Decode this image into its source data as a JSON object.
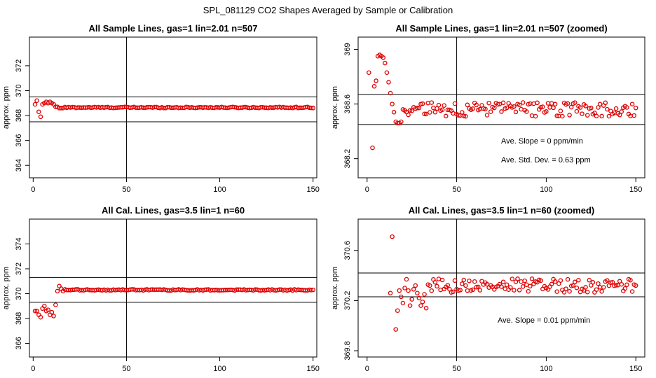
{
  "figure": {
    "title": "SPL_081129  CO2 Shapes Averaged by Sample or Calibration",
    "marker_color": "#e00000"
  },
  "chart_data": [
    {
      "type": "scatter",
      "title": "All Sample Lines, gas=1 lin=2.01 n=507",
      "ylabel": "approx. ppm",
      "xlim": [
        -2,
        152
      ],
      "ylim": [
        363,
        374.3
      ],
      "xticks": [
        0,
        50,
        100,
        150
      ],
      "yticks": [
        364,
        366,
        368,
        370,
        372
      ],
      "vline": 50,
      "hlines": [
        367.5,
        369.5
      ],
      "annotations": [],
      "shape": [
        [
          1,
          368.9
        ],
        [
          2,
          369.2
        ],
        [
          3,
          368.3
        ],
        [
          4,
          367.9
        ],
        [
          5,
          368.9
        ],
        [
          6,
          369.0
        ],
        [
          7,
          369.1
        ],
        [
          8,
          369.0
        ],
        [
          9,
          369.1
        ],
        [
          10,
          369.0
        ],
        [
          11,
          368.9
        ],
        [
          12,
          368.7
        ],
        [
          13,
          368.7
        ],
        [
          14,
          368.6
        ],
        [
          15,
          368.6
        ],
        [
          16,
          368.6
        ]
      ],
      "plateau": {
        "x_start": 17,
        "x_end": 150,
        "level": 368.65
      }
    },
    {
      "type": "scatter",
      "title": "All Sample Lines, gas=1 lin=2.01 n=507 (zoomed)",
      "ylabel": "approx. ppm",
      "xlim": [
        -5,
        155
      ],
      "ylim": [
        368.06,
        369.09
      ],
      "xticks": [
        0,
        50,
        100,
        150
      ],
      "yticks": [
        368.2,
        368.6,
        369.0
      ],
      "vline": 50,
      "hlines": [
        368.45,
        368.67
      ],
      "annotations": [
        "Ave. Slope =  0  ppm/min",
        "Ave. Std. Dev. =  0.63  ppm"
      ],
      "shape": [
        [
          1,
          368.83
        ],
        [
          3,
          368.28
        ],
        [
          4,
          368.73
        ],
        [
          5,
          368.77
        ],
        [
          6,
          368.95
        ],
        [
          7,
          368.96
        ],
        [
          8,
          368.95
        ],
        [
          9,
          368.94
        ],
        [
          10,
          368.9
        ],
        [
          11,
          368.83
        ],
        [
          12,
          368.76
        ],
        [
          13,
          368.68
        ],
        [
          14,
          368.6
        ],
        [
          15,
          368.54
        ],
        [
          16,
          368.47
        ],
        [
          17,
          368.46
        ],
        [
          18,
          368.46
        ],
        [
          19,
          368.47
        ],
        [
          20,
          368.56
        ]
      ],
      "plateau": {
        "x_start": 21,
        "x_end": 150,
        "level": 368.56
      }
    },
    {
      "type": "scatter",
      "title": "All Cal. Lines, gas=3.5 lin=1 n=60",
      "ylabel": "approx. ppm",
      "xlim": [
        -2,
        152
      ],
      "ylim": [
        364.9,
        376
      ],
      "xticks": [
        0,
        50,
        100,
        150
      ],
      "yticks": [
        366,
        368,
        370,
        372,
        374
      ],
      "vline": 50,
      "hlines": [
        369.3,
        371.3
      ],
      "annotations": [],
      "shape": [
        [
          1,
          368.6
        ],
        [
          2,
          368.6
        ],
        [
          3,
          368.3
        ],
        [
          4,
          368.1
        ],
        [
          5,
          368.8
        ],
        [
          6,
          369.0
        ],
        [
          7,
          368.6
        ],
        [
          8,
          368.7
        ],
        [
          9,
          368.3
        ],
        [
          10,
          368.5
        ],
        [
          11,
          368.2
        ],
        [
          12,
          369.1
        ],
        [
          13,
          370.2
        ],
        [
          14,
          370.6
        ],
        [
          15,
          370.4
        ],
        [
          16,
          370.2
        ]
      ],
      "plateau": {
        "x_start": 17,
        "x_end": 150,
        "level": 370.3
      }
    },
    {
      "type": "scatter",
      "title": "All Cal. Lines, gas=3.5 lin=1 n=60 (zoomed)",
      "ylabel": "approx. ppm",
      "xlim": [
        -5,
        155
      ],
      "ylim": [
        369.75,
        370.85
      ],
      "xticks": [
        0,
        50,
        100,
        150
      ],
      "yticks": [
        369.8,
        370.2,
        370.6
      ],
      "vline": 50,
      "hlines": [
        370.23,
        370.42
      ],
      "annotations": [
        "Ave. Slope =  0.01  ppm/min"
      ],
      "shape": [
        [
          13,
          370.26
        ],
        [
          14,
          370.71
        ],
        [
          16,
          369.97
        ],
        [
          17,
          370.12
        ],
        [
          18,
          370.28
        ],
        [
          19,
          370.23
        ],
        [
          20,
          370.18
        ],
        [
          21,
          370.3
        ],
        [
          22,
          370.37
        ],
        [
          23,
          370.28
        ],
        [
          24,
          370.16
        ],
        [
          25,
          370.21
        ],
        [
          26,
          370.29
        ],
        [
          27,
          370.32
        ],
        [
          28,
          370.26
        ],
        [
          29,
          370.22
        ],
        [
          30,
          370.16
        ],
        [
          31,
          370.19
        ],
        [
          32,
          370.25
        ],
        [
          33,
          370.14
        ]
      ],
      "plateau": {
        "x_start": 34,
        "x_end": 150,
        "level": 370.32
      }
    }
  ]
}
